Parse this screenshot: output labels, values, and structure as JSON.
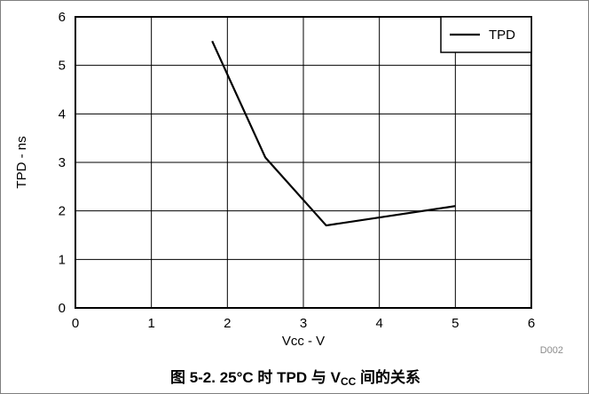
{
  "chart_data": {
    "type": "line",
    "xlabel": "Vcc - V",
    "ylabel": "TPD - ns",
    "xlim": [
      0,
      6
    ],
    "ylim": [
      0,
      6
    ],
    "xticks": [
      "0",
      "1",
      "2",
      "3",
      "4",
      "5",
      "6"
    ],
    "yticks": [
      "0",
      "1",
      "2",
      "3",
      "4",
      "5",
      "6"
    ],
    "grid": true,
    "legend_position": "top-right",
    "series": [
      {
        "name": "TPD",
        "x": [
          1.8,
          2.5,
          3.3,
          5.0
        ],
        "y": [
          5.5,
          3.1,
          1.7,
          2.1
        ]
      }
    ]
  },
  "figure_code": "D002",
  "caption": {
    "prefix": "图 5-2. 25°C 时 TPD 与 V",
    "sub": "CC",
    "suffix": " 间的关系"
  }
}
